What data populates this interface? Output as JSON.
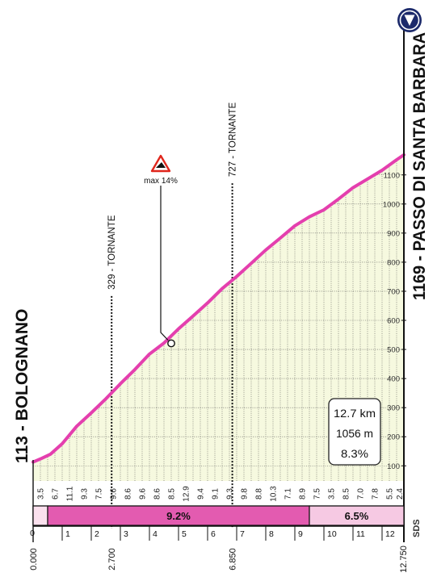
{
  "chart_data": {
    "type": "area",
    "title": "",
    "start": {
      "label": "113 - BOLOGNANO",
      "km": "0.000"
    },
    "finish": {
      "label": "1169 - PASSO DI  SANTA BARBARA",
      "km": "12.750"
    },
    "xlim": [
      0,
      12.75
    ],
    "ylim": [
      0,
      1250
    ],
    "x_ticks": [
      0,
      1,
      2,
      3,
      4,
      5,
      6,
      7,
      8,
      9,
      10,
      11,
      12
    ],
    "y_ticks": [
      100,
      200,
      300,
      400,
      500,
      600,
      700,
      800,
      900,
      1000,
      1100
    ],
    "profile": {
      "x": [
        0,
        0.3,
        0.6,
        1.0,
        1.5,
        2.0,
        2.5,
        3.0,
        3.5,
        4.0,
        4.5,
        5.0,
        5.5,
        6.0,
        6.5,
        7.0,
        7.5,
        8.0,
        8.5,
        9.0,
        9.5,
        10.0,
        10.5,
        11.0,
        11.5,
        12.0,
        12.5,
        12.75
      ],
      "y": [
        113,
        126,
        140,
        176,
        236,
        282,
        330,
        382,
        431,
        484,
        522,
        571,
        615,
        660,
        709,
        751,
        796,
        842,
        883,
        925,
        956,
        980,
        1017,
        1056,
        1086,
        1116,
        1152,
        1169
      ]
    },
    "segment_gradients": {
      "x": [
        0.25,
        0.75,
        1.25,
        1.75,
        2.25,
        2.75,
        3.25,
        3.75,
        4.25,
        4.75,
        5.25,
        5.75,
        6.25,
        6.75,
        7.25,
        7.75,
        8.25,
        8.75,
        9.25,
        9.75,
        10.25,
        10.75,
        11.25,
        11.75,
        12.25,
        12.6
      ],
      "values": [
        "3.5",
        "6.7",
        "11.1",
        "9.3",
        "7.5",
        "9.6",
        "8.6",
        "9.6",
        "8.6",
        "8.5",
        "12.9",
        "9.4",
        "9.1",
        "9.3",
        "9.8",
        "8.8",
        "10.3",
        "7.1",
        "8.9",
        "7.5",
        "3.5",
        "8.5",
        "7.0",
        "7.8",
        "5.5",
        "2.4"
      ]
    },
    "bands": [
      {
        "x0": 0.0,
        "x1": 0.5,
        "label": "",
        "color": "#fbe1ee"
      },
      {
        "x0": 0.5,
        "x1": 9.5,
        "label": "9.2%",
        "color": "#e35bb0"
      },
      {
        "x0": 9.5,
        "x1": 12.75,
        "label": "6.5%",
        "color": "#f6c9e3"
      }
    ],
    "markers": [
      {
        "x": 2.7,
        "elevation_label": "329 - TORNANTE",
        "km": "2.700"
      },
      {
        "x": 6.85,
        "elevation_label": "727 - TORNANTE",
        "km": "6.850"
      }
    ],
    "max_gradient": {
      "label": "max 14%",
      "x": 4.75,
      "y": 521
    },
    "stats": {
      "distance": "12.7 km",
      "climb": "1056 m",
      "avg": "8.3%"
    },
    "side_code": "SDS",
    "colors": {
      "line": "#e43fae",
      "fill": "#f6f9df",
      "grid": "#222222",
      "badge": "#1c2a6b"
    }
  }
}
